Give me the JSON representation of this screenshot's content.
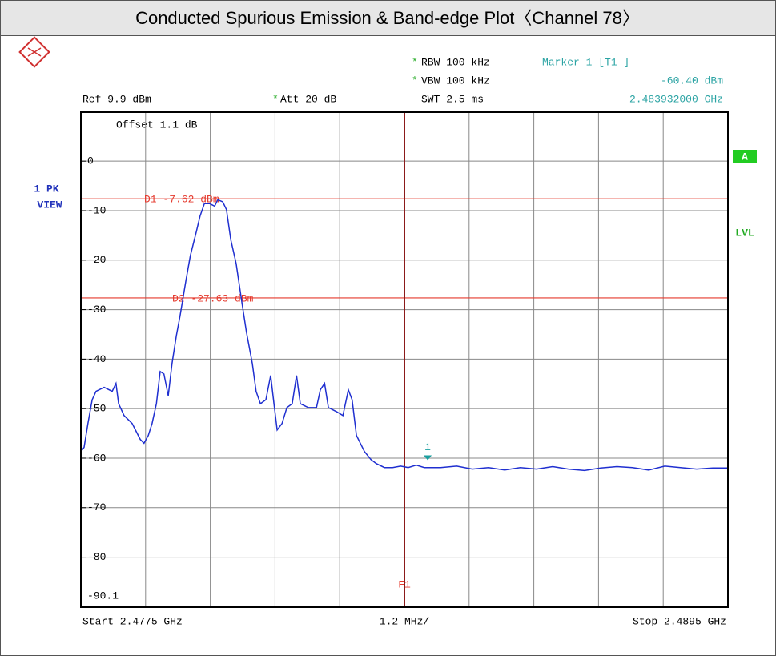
{
  "chart_data": {
    "type": "line",
    "title": "Conducted Spurious Emission & Band-edge Plot〈Channel 78〉",
    "star": "*",
    "rbw": "RBW 100 kHz",
    "vbw": "VBW 100 kHz",
    "swt": "SWT 2.5 ms",
    "ref": "Ref 9.9 dBm",
    "att": "Att 20 dB",
    "offset": "Offset 1.1 dB",
    "trace_mode": "1 PK",
    "view": "VIEW",
    "badge": "A",
    "lvl": "LVL",
    "start_label": "Start 2.4775 GHz",
    "span_label": "1.2 MHz/",
    "stop_label": "Stop 2.4895 GHz",
    "marker": {
      "title": "Marker 1 [T1 ]",
      "label": "1",
      "x": 2.483932,
      "y": -60.4,
      "x_label": "2.483932000 GHz",
      "y_label": "-60.40 dBm",
      "color": "#1a9f9f"
    },
    "display_lines": [
      {
        "label": "D1 -7.62 dBm",
        "value": -7.62
      },
      {
        "label": "D2 -27.63 dBm",
        "value": -27.63
      }
    ],
    "display_line_color": "#e53a2e",
    "freq_line": {
      "label": "F1",
      "value": 2.4835,
      "color": "#8b1a1a"
    },
    "xlim": [
      2.4775,
      2.4895
    ],
    "xticks": [
      2.4775,
      2.4787,
      2.4799,
      2.4811,
      2.4823,
      2.4835,
      2.4847,
      2.4859,
      2.4871,
      2.4883,
      2.4895
    ],
    "ylim": [
      -90.1,
      9.9
    ],
    "yticks": [
      0,
      -10,
      -20,
      -30,
      -40,
      -50,
      -60,
      -70,
      -80,
      -90.1
    ],
    "grid": true,
    "series": [
      {
        "name": "1 PK",
        "color": "#1f2fd0",
        "x": [
          2.4775,
          2.47756,
          2.47763,
          2.47771,
          2.47778,
          2.47793,
          2.47808,
          2.47815,
          2.4782,
          2.4783,
          2.47845,
          2.4786,
          2.47867,
          2.47875,
          2.47882,
          2.4789,
          2.47897,
          2.47904,
          2.47912,
          2.47919,
          2.47927,
          2.47934,
          2.47945,
          2.47953,
          2.47964,
          2.47971,
          2.47979,
          2.47989,
          2.47998,
          2.48004,
          2.48013,
          2.4802,
          2.48028,
          2.48038,
          2.48049,
          2.48057,
          2.48068,
          2.48075,
          2.48083,
          2.48093,
          2.48102,
          2.48108,
          2.48114,
          2.48123,
          2.48132,
          2.48142,
          2.4815,
          2.48157,
          2.48172,
          2.48187,
          2.48194,
          2.48202,
          2.48209,
          2.48224,
          2.48236,
          2.48246,
          2.48253,
          2.48261,
          2.48276,
          2.48288,
          2.48298,
          2.48313,
          2.48328,
          2.48343,
          2.48357,
          2.48372,
          2.48387,
          2.48417,
          2.48447,
          2.48476,
          2.48506,
          2.48536,
          2.48565,
          2.48595,
          2.48625,
          2.48654,
          2.48684,
          2.48714,
          2.48744,
          2.48773,
          2.48803,
          2.48833,
          2.48862,
          2.48892,
          2.48922,
          2.4895
        ],
        "values": [
          -58.7,
          -57.8,
          -53.0,
          -48.2,
          -46.5,
          -45.7,
          -46.5,
          -44.9,
          -49.0,
          -51.4,
          -53.0,
          -56.2,
          -57.0,
          -55.4,
          -53.0,
          -49.0,
          -42.5,
          -43.0,
          -47.4,
          -40.9,
          -35.3,
          -31.2,
          -24.0,
          -19.1,
          -14.3,
          -11.1,
          -8.6,
          -8.6,
          -9.1,
          -7.8,
          -8.2,
          -9.8,
          -15.9,
          -20.7,
          -28.8,
          -34.5,
          -40.9,
          -46.5,
          -49.0,
          -48.2,
          -43.3,
          -49.0,
          -54.3,
          -53.0,
          -49.8,
          -49.0,
          -43.3,
          -49.0,
          -49.8,
          -49.8,
          -46.2,
          -44.9,
          -49.8,
          -50.6,
          -51.4,
          -46.2,
          -48.2,
          -55.4,
          -58.7,
          -60.3,
          -61.1,
          -61.9,
          -61.9,
          -61.6,
          -61.9,
          -61.4,
          -61.9,
          -61.9,
          -61.6,
          -62.2,
          -61.9,
          -62.4,
          -61.9,
          -62.2,
          -61.7,
          -62.2,
          -62.5,
          -62.0,
          -61.7,
          -61.9,
          -62.4,
          -61.6,
          -61.9,
          -62.2,
          -62.0,
          -62.0
        ]
      }
    ]
  }
}
